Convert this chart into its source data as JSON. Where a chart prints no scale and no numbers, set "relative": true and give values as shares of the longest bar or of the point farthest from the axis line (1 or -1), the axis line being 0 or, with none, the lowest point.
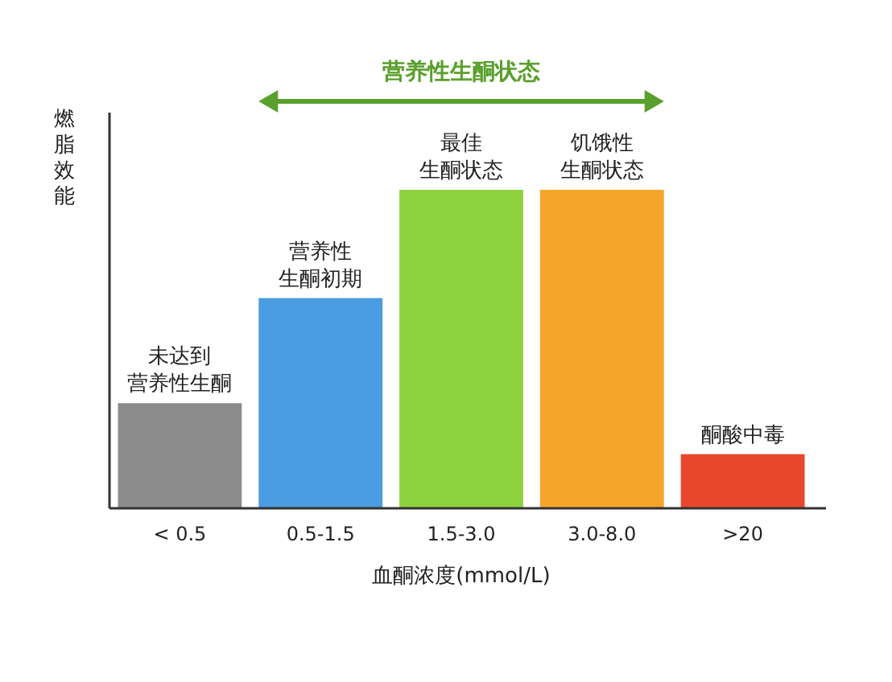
{
  "chart_data": {
    "type": "bar",
    "relative": true,
    "ylabel": "燃脂效能",
    "xlabel": "血酮浓度(mmol/L)",
    "categories": [
      "< 0.5",
      "0.5-1.5",
      "1.5-3.0",
      "3.0-8.0",
      ">20"
    ],
    "values": [
      0.33,
      0.66,
      1,
      1,
      0.17
    ],
    "colors": [
      "#8c8c8c",
      "#4a9de0",
      "#8fd23f",
      "#f5a52a",
      "#e8472c"
    ],
    "annotations": [
      "营养性生酮状态",
      "未达到营养性生酮",
      "营养性生酮初期",
      "最佳生酮状态",
      "饥饿性生酮状态",
      "酮酸中毒"
    ]
  }
}
